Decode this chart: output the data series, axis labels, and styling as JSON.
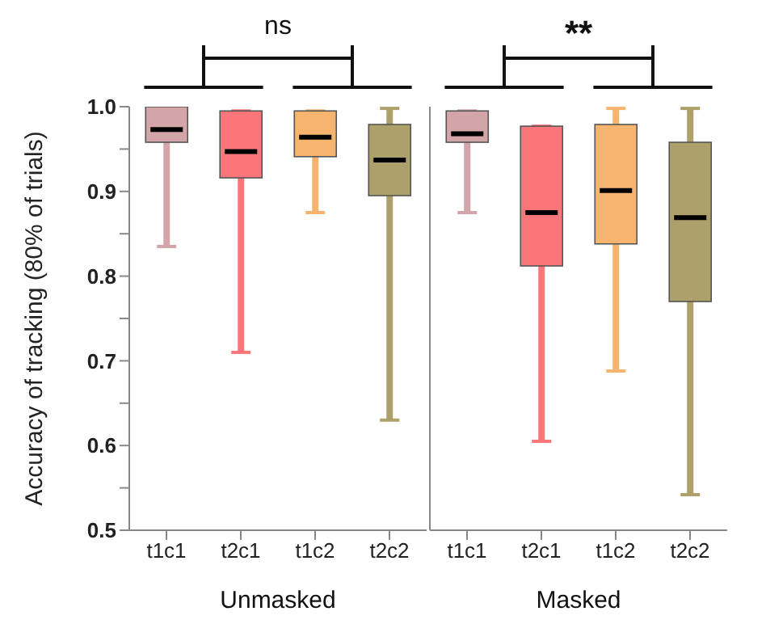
{
  "chart_data": [
    {
      "type": "box",
      "ylabel": "Accuracy of tracking (80% of trials)",
      "xlabel": "Unmasked",
      "categories": [
        "t1c1",
        "t2c1",
        "t1c2",
        "t2c2"
      ],
      "colors": [
        "#d4a5a8",
        "#fb767a",
        "#f6b46e",
        "#aea06a"
      ],
      "boxes": [
        {
          "low": 0.835,
          "q1": 0.958,
          "median": 0.973,
          "q3": 1.0,
          "high": 1.0
        },
        {
          "low": 0.71,
          "q1": 0.916,
          "median": 0.947,
          "q3": 0.995,
          "high": 0.995
        },
        {
          "low": 0.875,
          "q1": 0.941,
          "median": 0.964,
          "q3": 0.995,
          "high": 0.995
        },
        {
          "low": 0.63,
          "q1": 0.895,
          "median": 0.937,
          "q3": 0.979,
          "high": 0.998
        }
      ],
      "ylim": [
        0.5,
        1.0
      ],
      "yticks": [
        0.5,
        {
          "value": 0.55,
          "label": null
        },
        0.6,
        {
          "value": 0.65,
          "label": null
        },
        0.7,
        {
          "value": 0.75,
          "label": null
        },
        0.8,
        {
          "value": 0.85,
          "label": null
        },
        0.9,
        {
          "value": 0.95,
          "label": null
        },
        {
          "value": 1.0,
          "label": "1.0"
        }
      ],
      "grid": false,
      "legend": false,
      "annotations": [
        "ns"
      ]
    },
    {
      "type": "box",
      "xlabel": "Masked",
      "categories": [
        "t1c1",
        "t2c1",
        "t1c2",
        "t2c2"
      ],
      "colors": [
        "#d4a5a8",
        "#fb767a",
        "#f6b46e",
        "#aea06a"
      ],
      "boxes": [
        {
          "low": 0.875,
          "q1": 0.958,
          "median": 0.968,
          "q3": 0.995,
          "high": 0.995
        },
        {
          "low": 0.605,
          "q1": 0.812,
          "median": 0.875,
          "q3": 0.977,
          "high": 0.977
        },
        {
          "low": 0.688,
          "q1": 0.838,
          "median": 0.901,
          "q3": 0.979,
          "high": 0.998
        },
        {
          "low": 0.542,
          "q1": 0.77,
          "median": 0.869,
          "q3": 0.958,
          "high": 0.998
        }
      ],
      "ylim": [
        0.5,
        1.0
      ],
      "tick_labels": "x",
      "grid": false,
      "legend": false,
      "annotations": [
        "**"
      ]
    }
  ]
}
